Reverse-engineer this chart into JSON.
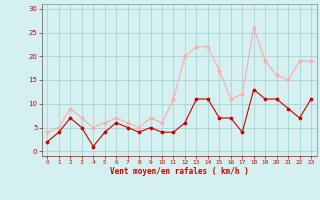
{
  "x": [
    0,
    1,
    2,
    3,
    4,
    5,
    6,
    7,
    8,
    9,
    10,
    11,
    12,
    13,
    14,
    15,
    16,
    17,
    18,
    19,
    20,
    21,
    22,
    23
  ],
  "wind_avg": [
    2,
    4,
    7,
    5,
    1,
    4,
    6,
    5,
    4,
    5,
    4,
    4,
    6,
    11,
    11,
    7,
    7,
    4,
    13,
    11,
    11,
    9,
    7,
    11
  ],
  "wind_gust": [
    4,
    5,
    9,
    7,
    5,
    6,
    7,
    6,
    5,
    7,
    6,
    11,
    20,
    22,
    22,
    17,
    11,
    12,
    26,
    19,
    16,
    15,
    19,
    19
  ],
  "color_avg": "#cc0000",
  "color_gust": "#ffaaaa",
  "bg_color": "#d4f0f0",
  "grid_color": "#aad4d4",
  "xlabel": "Vent moyen/en rafales ( km/h )",
  "ylabel_ticks": [
    0,
    5,
    10,
    15,
    20,
    25,
    30
  ],
  "ylim": [
    -1,
    31
  ],
  "xlim": [
    -0.5,
    23.5
  ]
}
